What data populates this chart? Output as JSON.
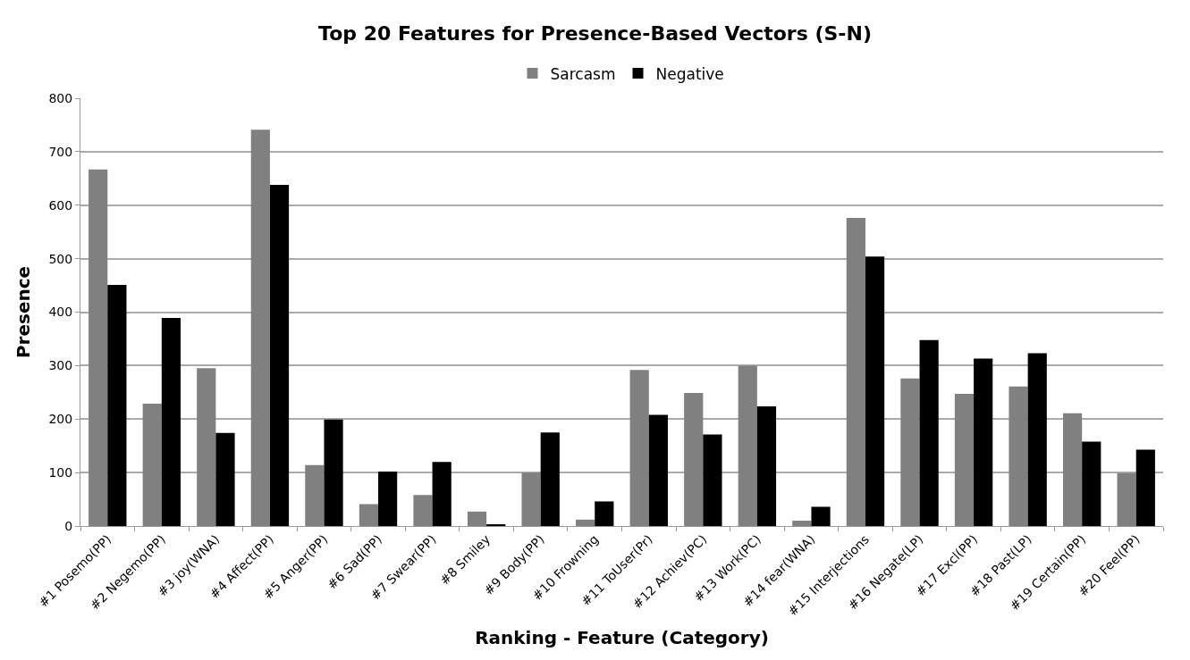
{
  "chart_data": {
    "type": "bar",
    "title": "Top 20 Features for Presence-Based Vectors (S-N)",
    "xlabel": "Ranking - Feature (Category)",
    "ylabel": "Presence",
    "categories": [
      "#1 Posemo(PP)",
      "#2 Negemo(PP)",
      "#3 joy(WNA)",
      "#4 Affect(PP)",
      "#5 Anger(PP)",
      "#6 Sad(PP)",
      "#7 Swear(PP)",
      "#8 Smiley",
      "#9 Body(PP)",
      "#10 Frowning",
      "#11 ToUser(Pr)",
      "#12 Achiev(PC)",
      "#13 Work(PC)",
      "#14 fear(WNA)",
      "#15 Interjections",
      "#16 Negate(LP)",
      "#17 Excl(PP)",
      "#18 Past(LP)",
      "#19 Certain(PP)",
      "#20 Feel(PP)"
    ],
    "series": [
      {
        "name": "Sarcasm",
        "color": "#808080",
        "values": [
          667,
          229,
          295,
          741,
          114,
          41,
          58,
          27,
          100,
          12,
          292,
          249,
          300,
          10,
          576,
          276,
          247,
          261,
          211,
          99
        ]
      },
      {
        "name": "Negative",
        "color": "#000000",
        "values": [
          451,
          389,
          174,
          638,
          199,
          102,
          120,
          2,
          175,
          46,
          208,
          171,
          224,
          36,
          504,
          348,
          313,
          323,
          158,
          143
        ]
      }
    ],
    "ylim": [
      0,
      800
    ],
    "yticks": [
      0,
      100,
      200,
      300,
      400,
      500,
      600,
      700,
      800
    ],
    "grid": "y",
    "legend": "top"
  }
}
